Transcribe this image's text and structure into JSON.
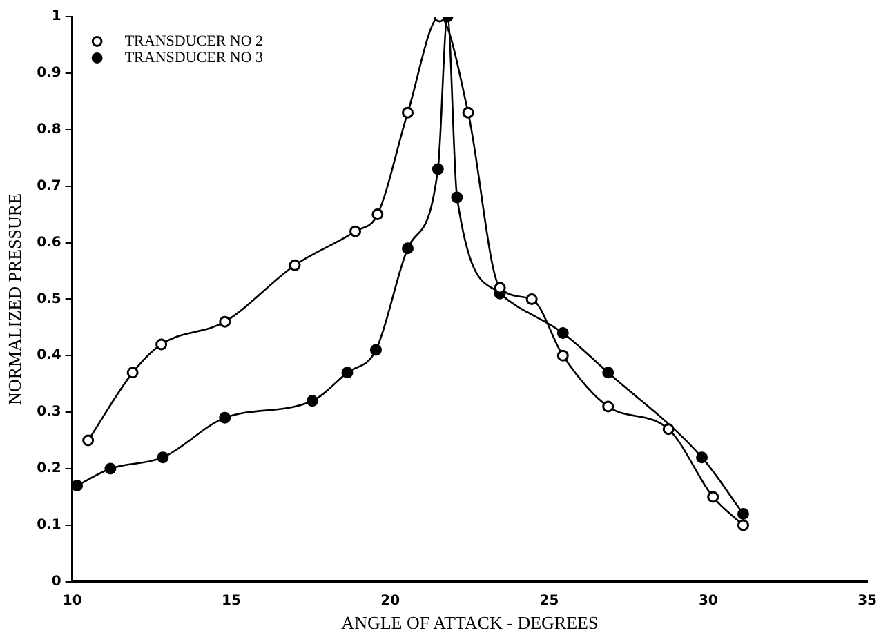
{
  "chart_data": {
    "type": "line",
    "xlabel": "ANGLE OF ATTACK - DEGREES",
    "ylabel": "NORMALIZED PRESSURE",
    "xlim": [
      10,
      35
    ],
    "xticks": [
      10,
      15,
      20,
      25,
      30,
      35
    ],
    "ylim": [
      0,
      1
    ],
    "yticks": [
      0,
      0.1,
      0.2,
      0.3,
      0.4,
      0.5,
      0.6,
      0.7,
      0.8,
      0.9,
      1
    ],
    "grid": false,
    "legend": "top left",
    "marker": "circle",
    "line_style": "solid",
    "series": [
      {
        "name": "TRANSDUCER NO 2",
        "color": "#000000",
        "x": [
          10.5,
          11.9,
          12.8,
          14.8,
          17.0,
          18.9,
          19.6,
          20.55,
          21.55,
          22.45,
          23.45,
          24.45,
          25.43,
          26.85,
          28.75,
          30.15,
          31.1
        ],
        "values": [
          0.25,
          0.37,
          0.42,
          0.46,
          0.56,
          0.62,
          0.65,
          0.83,
          1.0,
          0.83,
          0.52,
          0.5,
          0.4,
          0.31,
          0.27,
          0.15,
          0.1
        ]
      },
      {
        "name": "TRANSDUCER NO 3",
        "color": "#000000",
        "x": [
          10.15,
          11.2,
          12.85,
          14.8,
          17.55,
          18.65,
          19.55,
          20.55,
          21.5,
          21.8,
          22.1,
          23.45,
          25.43,
          26.85,
          29.8,
          31.1
        ],
        "values": [
          0.17,
          0.2,
          0.22,
          0.29,
          0.32,
          0.37,
          0.41,
          0.59,
          0.73,
          1.0,
          0.68,
          0.51,
          0.44,
          0.37,
          0.22,
          0.12
        ]
      }
    ]
  }
}
